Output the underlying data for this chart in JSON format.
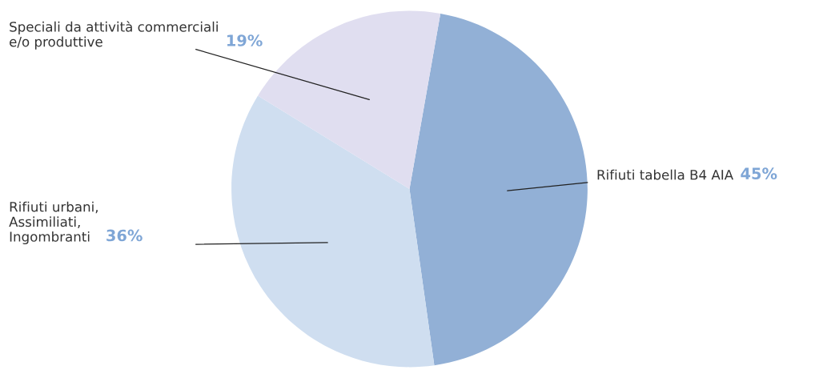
{
  "chart_data": {
    "type": "pie",
    "categories": [
      "Rifiuti tabella B4 AIA",
      "Rifiuti urbani,\nAssimiliati,\nIngombranti",
      "Speciali da attività commerciali\ne/o produttive"
    ],
    "values": [
      45,
      36,
      19
    ],
    "value_labels": [
      "45%",
      "36%",
      "19%"
    ],
    "colors": [
      "#92b0d6",
      "#cfdef0",
      "#e0def0"
    ],
    "legend": false
  }
}
